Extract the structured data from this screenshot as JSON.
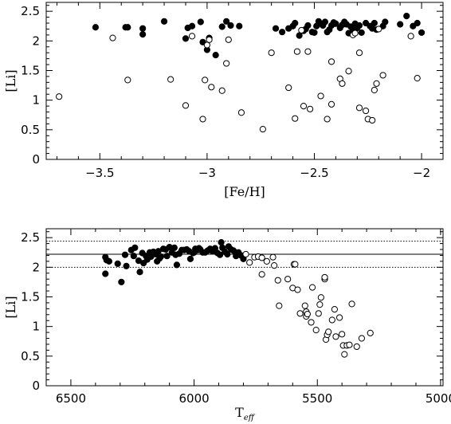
{
  "chart_data": [
    {
      "type": "scatter",
      "xlabel": "[Fe/H]",
      "ylabel": "[Li]",
      "xlim": [
        -3.75,
        -1.9
      ],
      "ylim": [
        0,
        2.65
      ],
      "xticks": [
        -3.5,
        -3,
        -2.5,
        -2
      ],
      "xtick_labels": [
        "−3.5",
        "−3",
        "−2.5",
        "−2"
      ],
      "yticks": [
        0,
        0.5,
        1,
        1.5,
        2,
        2.5
      ],
      "ytick_labels": [
        "0",
        "0.5",
        "1",
        "1.5",
        "2",
        "2.5"
      ],
      "series": [
        {
          "marker": "filled-circle",
          "points": [
            [
              -3.52,
              2.23
            ],
            [
              -3.38,
              2.23
            ],
            [
              -3.37,
              2.23
            ],
            [
              -3.3,
              2.21
            ],
            [
              -3.3,
              2.11
            ],
            [
              -3.2,
              2.33
            ],
            [
              -3.1,
              2.04
            ],
            [
              -3.09,
              2.22
            ],
            [
              -3.07,
              2.25
            ],
            [
              -3.03,
              2.32
            ],
            [
              -3.02,
              1.98
            ],
            [
              -3.0,
              1.85
            ],
            [
              -2.99,
              2.05
            ],
            [
              -2.96,
              1.76
            ],
            [
              -2.93,
              2.24
            ],
            [
              -2.91,
              2.33
            ],
            [
              -2.89,
              2.26
            ],
            [
              -2.85,
              2.25
            ],
            [
              -2.68,
              2.21
            ],
            [
              -2.65,
              2.15
            ],
            [
              -2.62,
              2.21
            ],
            [
              -2.6,
              2.25
            ],
            [
              -2.59,
              2.3
            ],
            [
              -2.57,
              2.09
            ],
            [
              -2.55,
              2.17
            ],
            [
              -2.54,
              2.2
            ],
            [
              -2.53,
              2.26
            ],
            [
              -2.51,
              2.15
            ],
            [
              -2.5,
              2.14
            ],
            [
              -2.49,
              2.25
            ],
            [
              -2.48,
              2.33
            ],
            [
              -2.47,
              2.29
            ],
            [
              -2.46,
              2.26
            ],
            [
              -2.45,
              2.32
            ],
            [
              -2.44,
              2.15
            ],
            [
              -2.43,
              2.19
            ],
            [
              -2.42,
              2.26
            ],
            [
              -2.41,
              2.31
            ],
            [
              -2.4,
              2.29
            ],
            [
              -2.38,
              2.22
            ],
            [
              -2.37,
              2.27
            ],
            [
              -2.36,
              2.32
            ],
            [
              -2.35,
              2.28
            ],
            [
              -2.34,
              2.13
            ],
            [
              -2.33,
              2.24
            ],
            [
              -2.32,
              2.18
            ],
            [
              -2.31,
              2.29
            ],
            [
              -2.3,
              2.22
            ],
            [
              -2.29,
              2.26
            ],
            [
              -2.28,
              2.14
            ],
            [
              -2.26,
              2.3
            ],
            [
              -2.24,
              2.25
            ],
            [
              -2.23,
              2.21
            ],
            [
              -2.22,
              2.3
            ],
            [
              -2.21,
              2.19
            ],
            [
              -2.18,
              2.25
            ],
            [
              -2.17,
              2.32
            ],
            [
              -2.1,
              2.28
            ],
            [
              -2.07,
              2.42
            ],
            [
              -2.04,
              2.25
            ],
            [
              -2.02,
              2.3
            ],
            [
              -2.0,
              2.14
            ]
          ]
        },
        {
          "marker": "open-circle",
          "points": [
            [
              -3.69,
              1.06
            ],
            [
              -3.44,
              2.05
            ],
            [
              -3.37,
              1.34
            ],
            [
              -3.17,
              1.35
            ],
            [
              -3.1,
              0.91
            ],
            [
              -3.07,
              2.08
            ],
            [
              -3.02,
              0.68
            ],
            [
              -3.01,
              1.34
            ],
            [
              -3.0,
              1.93
            ],
            [
              -2.99,
              2.02
            ],
            [
              -2.98,
              1.22
            ],
            [
              -2.93,
              1.16
            ],
            [
              -2.91,
              1.62
            ],
            [
              -2.9,
              2.02
            ],
            [
              -2.84,
              0.79
            ],
            [
              -2.74,
              0.51
            ],
            [
              -2.7,
              1.8
            ],
            [
              -2.62,
              1.21
            ],
            [
              -2.59,
              0.69
            ],
            [
              -2.58,
              1.82
            ],
            [
              -2.56,
              2.18
            ],
            [
              -2.55,
              0.9
            ],
            [
              -2.53,
              1.82
            ],
            [
              -2.52,
              0.85
            ],
            [
              -2.47,
              1.07
            ],
            [
              -2.44,
              0.68
            ],
            [
              -2.42,
              0.93
            ],
            [
              -2.42,
              1.65
            ],
            [
              -2.38,
              1.36
            ],
            [
              -2.37,
              1.28
            ],
            [
              -2.34,
              1.49
            ],
            [
              -2.32,
              2.1
            ],
            [
              -2.31,
              2.13
            ],
            [
              -2.29,
              1.8
            ],
            [
              -2.29,
              0.87
            ],
            [
              -2.26,
              0.82
            ],
            [
              -2.25,
              0.68
            ],
            [
              -2.23,
              0.66
            ],
            [
              -2.22,
              1.17
            ],
            [
              -2.21,
              1.28
            ],
            [
              -2.2,
              2.2
            ],
            [
              -2.18,
              1.42
            ],
            [
              -2.05,
              2.08
            ],
            [
              -2.02,
              1.37
            ]
          ]
        }
      ]
    },
    {
      "type": "scatter",
      "xlabel": "T",
      "xlabel_sub": "eff",
      "ylabel": "[Li]",
      "xlim": [
        6600,
        4990
      ],
      "ylim": [
        0,
        2.65
      ],
      "xticks": [
        6500,
        6000,
        5500,
        5000
      ],
      "xtick_labels": [
        "6500",
        "6000",
        "5500",
        "5000"
      ],
      "yticks": [
        0,
        0.5,
        1,
        1.5,
        2,
        2.5
      ],
      "ytick_labels": [
        "0",
        "0.5",
        "1",
        "1.5",
        "2",
        "2.5"
      ],
      "reference_lines": [
        {
          "y": 2.22,
          "style": "solid"
        },
        {
          "y": 2.44,
          "style": "dotted"
        },
        {
          "y": 2.0,
          "style": "dotted"
        }
      ],
      "series": [
        {
          "marker": "filled-circle",
          "points": [
            [
              6360,
              2.17
            ],
            [
              6355,
              2.12
            ],
            [
              6360,
              1.89
            ],
            [
              6345,
              2.1
            ],
            [
              6310,
              2.06
            ],
            [
              6295,
              1.75
            ],
            [
              6280,
              2.21
            ],
            [
              6275,
              2.02
            ],
            [
              6255,
              2.29
            ],
            [
              6245,
              2.19
            ],
            [
              6240,
              2.33
            ],
            [
              6225,
              2.11
            ],
            [
              6220,
              1.92
            ],
            [
              6210,
              2.24
            ],
            [
              6205,
              2.07
            ],
            [
              6195,
              2.19
            ],
            [
              6190,
              2.13
            ],
            [
              6180,
              2.25
            ],
            [
              6175,
              2.18
            ],
            [
              6165,
              2.26
            ],
            [
              6155,
              2.22
            ],
            [
              6150,
              2.1
            ],
            [
              6145,
              2.27
            ],
            [
              6140,
              2.15
            ],
            [
              6135,
              2.18
            ],
            [
              6125,
              2.31
            ],
            [
              6115,
              2.3
            ],
            [
              6110,
              2.19
            ],
            [
              6100,
              2.34
            ],
            [
              6090,
              2.25
            ],
            [
              6080,
              2.33
            ],
            [
              6075,
              2.21
            ],
            [
              6070,
              2.04
            ],
            [
              6060,
              2.23
            ],
            [
              6050,
              2.29
            ],
            [
              6040,
              2.29
            ],
            [
              6030,
              2.3
            ],
            [
              6020,
              2.27
            ],
            [
              6015,
              2.14
            ],
            [
              6005,
              2.24
            ],
            [
              6000,
              2.25
            ],
            [
              5995,
              2.31
            ],
            [
              5985,
              2.29
            ],
            [
              5980,
              2.32
            ],
            [
              5975,
              2.3
            ],
            [
              5965,
              2.25
            ],
            [
              5955,
              2.25
            ],
            [
              5945,
              2.28
            ],
            [
              5935,
              2.31
            ],
            [
              5925,
              2.27
            ],
            [
              5915,
              2.32
            ],
            [
              5905,
              2.24
            ],
            [
              5895,
              2.21
            ],
            [
              5890,
              2.42
            ],
            [
              5885,
              2.33
            ],
            [
              5875,
              2.26
            ],
            [
              5865,
              2.22
            ],
            [
              5860,
              2.35
            ],
            [
              5850,
              2.3
            ],
            [
              5840,
              2.28
            ],
            [
              5830,
              2.19
            ],
            [
              5820,
              2.25
            ],
            [
              5810,
              2.2
            ],
            [
              5800,
              2.14
            ]
          ]
        },
        {
          "marker": "open-circle",
          "points": [
            [
              5790,
              2.22
            ],
            [
              5775,
              2.08
            ],
            [
              5755,
              2.17
            ],
            [
              5740,
              2.18
            ],
            [
              5725,
              1.88
            ],
            [
              5725,
              2.16
            ],
            [
              5705,
              2.1
            ],
            [
              5680,
              2.17
            ],
            [
              5675,
              2.03
            ],
            [
              5660,
              1.78
            ],
            [
              5655,
              1.35
            ],
            [
              5620,
              1.8
            ],
            [
              5600,
              1.65
            ],
            [
              5595,
              2.05
            ],
            [
              5590,
              2.05
            ],
            [
              5580,
              1.62
            ],
            [
              5570,
              1.22
            ],
            [
              5550,
              1.35
            ],
            [
              5545,
              1.25
            ],
            [
              5545,
              1.17
            ],
            [
              5540,
              1.21
            ],
            [
              5525,
              1.07
            ],
            [
              5520,
              1.66
            ],
            [
              5505,
              0.94
            ],
            [
              5495,
              1.22
            ],
            [
              5490,
              1.37
            ],
            [
              5485,
              1.49
            ],
            [
              5470,
              1.8
            ],
            [
              5470,
              1.83
            ],
            [
              5465,
              0.78
            ],
            [
              5460,
              0.86
            ],
            [
              5455,
              0.91
            ],
            [
              5440,
              1.11
            ],
            [
              5430,
              1.29
            ],
            [
              5425,
              0.83
            ],
            [
              5410,
              1.15
            ],
            [
              5400,
              0.87
            ],
            [
              5395,
              0.68
            ],
            [
              5390,
              0.53
            ],
            [
              5380,
              0.68
            ],
            [
              5370,
              0.69
            ],
            [
              5360,
              1.38
            ],
            [
              5340,
              0.66
            ],
            [
              5320,
              0.8
            ],
            [
              5285,
              0.89
            ]
          ]
        }
      ]
    }
  ]
}
